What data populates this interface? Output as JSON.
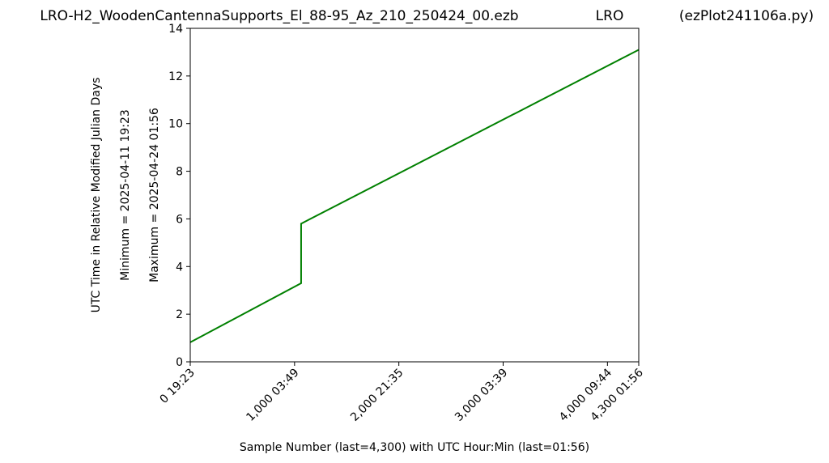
{
  "chart_data": {
    "type": "line",
    "title": "LRO-H2_WoodenCantennaSupports_El_88-95_Az_210_250424_00.ezb",
    "station": "LRO",
    "script_name": "(ezPlot241106a.py)",
    "y_label": "UTC Time in Relative Modified Julian Days",
    "y_label_min": "Minimum = 2025-04-11   19:23",
    "y_label_max": "Maximum = 2025-04-24   01:56",
    "x_label": "Sample Number (last=4,300) with UTC Hour:Min (last=01:56)",
    "x": [
      0,
      1063,
      1063,
      4300
    ],
    "values": [
      0.82,
      3.3,
      5.8,
      13.1
    ],
    "color": "#008000",
    "xlim": [
      0,
      4300
    ],
    "xticks": [
      {
        "value": 0,
        "label": "0  19:23"
      },
      {
        "value": 1000,
        "label": "1,000  03:49"
      },
      {
        "value": 2000,
        "label": "2,000  21:35"
      },
      {
        "value": 3000,
        "label": "3,000  03:39"
      },
      {
        "value": 4000,
        "label": "4,000  09:44"
      },
      {
        "value": 4300,
        "label": "4,300  01:56"
      }
    ],
    "ylim": [
      0,
      14
    ],
    "yticks": [
      0,
      2,
      4,
      6,
      8,
      10,
      12,
      14
    ]
  }
}
